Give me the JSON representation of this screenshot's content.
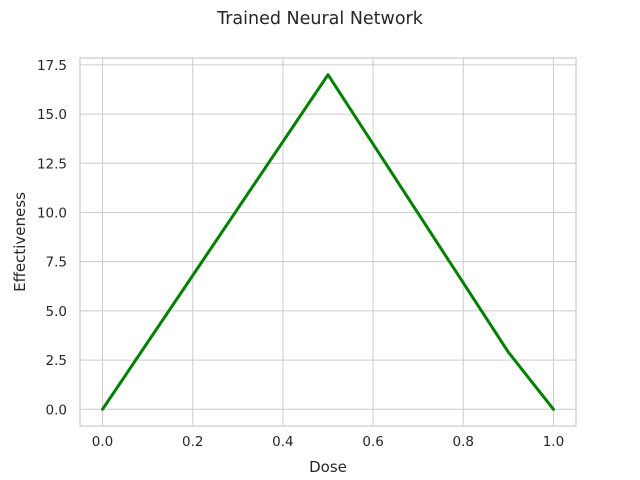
{
  "chart_data": {
    "type": "line",
    "title": "Trained Neural Network",
    "xlabel": "Dose",
    "ylabel": "Effectiveness",
    "xlim": [
      -0.05,
      1.05
    ],
    "ylim": [
      -0.85,
      17.85
    ],
    "x_ticks": [
      0.0,
      0.2,
      0.4,
      0.6,
      0.8,
      1.0
    ],
    "x_tick_labels": [
      "0.0",
      "0.2",
      "0.4",
      "0.6",
      "0.8",
      "1.0"
    ],
    "y_ticks": [
      0.0,
      2.5,
      5.0,
      7.5,
      10.0,
      12.5,
      15.0,
      17.5
    ],
    "y_tick_labels": [
      "0.0",
      "2.5",
      "5.0",
      "7.5",
      "10.0",
      "12.5",
      "15.0",
      "17.5"
    ],
    "grid": true,
    "series": [
      {
        "color": "#008000",
        "x": [
          0.0,
          0.5,
          0.9,
          1.0
        ],
        "y": [
          0.0,
          17.0,
          2.9,
          0.0
        ]
      }
    ]
  }
}
